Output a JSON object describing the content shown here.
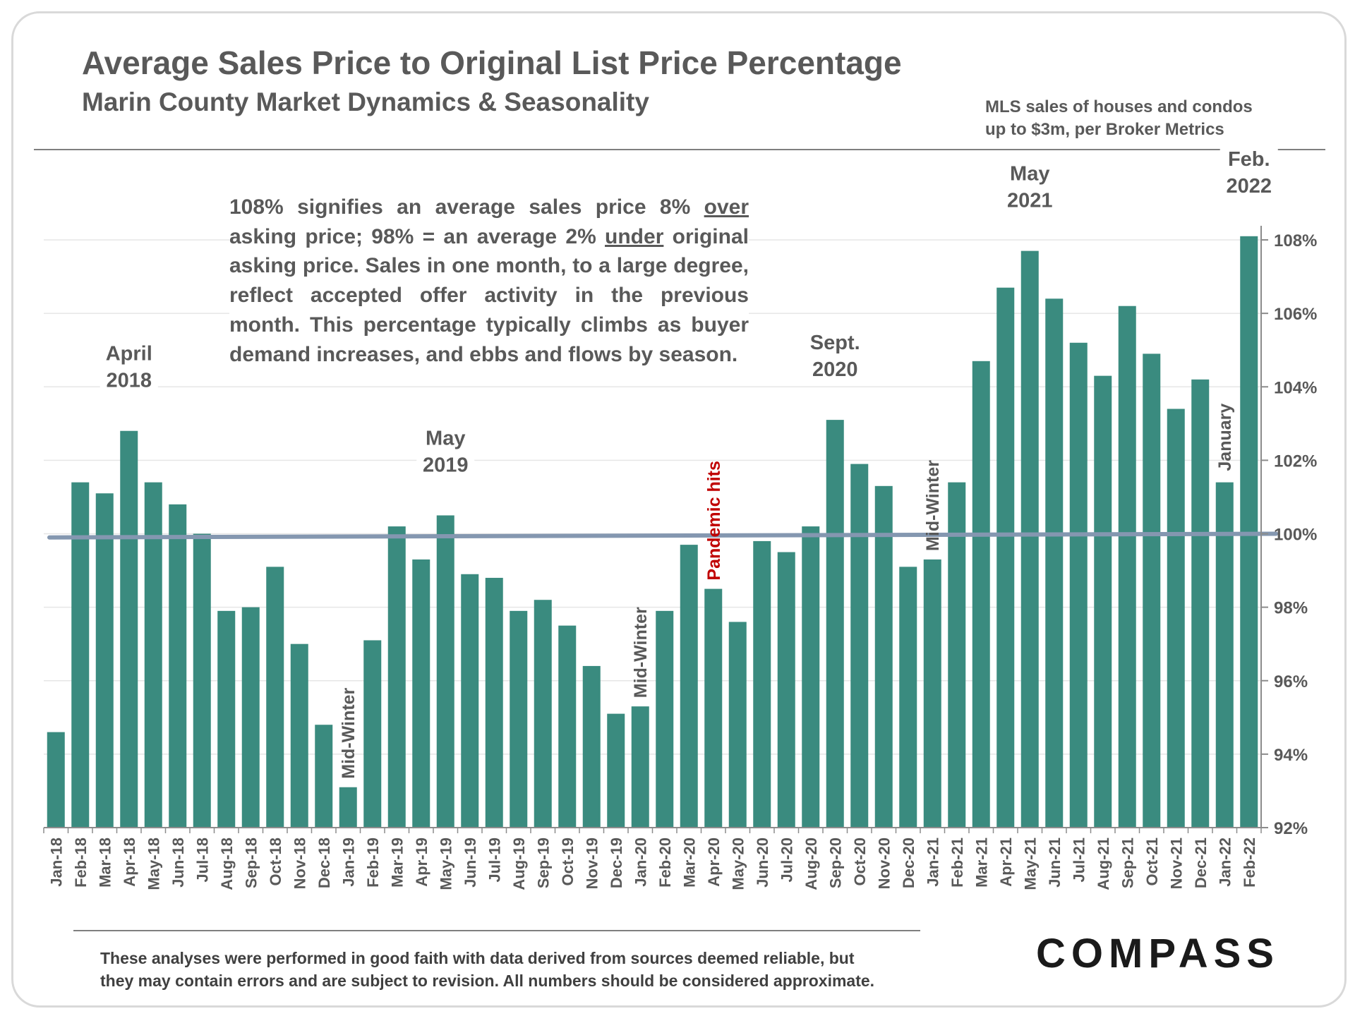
{
  "header": {
    "title": "Average Sales Price to Original List Price Percentage",
    "subtitle": "Marin County Market Dynamics & Seasonality",
    "source_line1": "MLS sales of houses and condos",
    "source_line2": "up to $3m, per Broker Metrics"
  },
  "explanation": {
    "part1": "108% signifies an average sales price 8% ",
    "under1": "over",
    "part2": " asking price; 98% = an average 2% ",
    "under2": "under",
    "part3": " original asking price. Sales in one month, to a large degree, reflect accepted offer activity in the previous month. This percentage typically climbs as buyer demand increases, and ebbs and flows by season."
  },
  "footer": {
    "disclaimer_line1": "These analyses were performed in good faith with data derived from sources deemed reliable, but",
    "disclaimer_line2": "they may contain errors and are subject to revision. All numbers should be considered  approximate.",
    "logo": "COMPASS"
  },
  "colors": {
    "bar": "#3a8b7f",
    "reference_line": "#8497b0",
    "text": "#595959",
    "pandemic": "#c00000",
    "grid": "#e6e6e6"
  },
  "chart_data": {
    "type": "bar",
    "title": "Average Sales Price to Original List Price Percentage",
    "xlabel": "",
    "ylabel": "",
    "ylim": [
      92,
      108
    ],
    "yticks": [
      "92%",
      "94%",
      "96%",
      "98%",
      "100%",
      "102%",
      "104%",
      "106%",
      "108%"
    ],
    "grid": true,
    "reference_line": 100,
    "categories": [
      "Jan-18",
      "Feb-18",
      "Mar-18",
      "Apr-18",
      "May-18",
      "Jun-18",
      "Jul-18",
      "Aug-18",
      "Sep-18",
      "Oct-18",
      "Nov-18",
      "Dec-18",
      "Jan-19",
      "Feb-19",
      "Mar-19",
      "Apr-19",
      "May-19",
      "Jun-19",
      "Jul-19",
      "Aug-19",
      "Sep-19",
      "Oct-19",
      "Nov-19",
      "Dec-19",
      "Jan-20",
      "Feb-20",
      "Mar-20",
      "Apr-20",
      "May-20",
      "Jun-20",
      "Jul-20",
      "Aug-20",
      "Sep-20",
      "Oct-20",
      "Nov-20",
      "Dec-20",
      "Jan-21",
      "Feb-21",
      "Mar-21",
      "Apr-21",
      "May-21",
      "Jun-21",
      "Jul-21",
      "Aug-21",
      "Sep-21",
      "Oct-21",
      "Nov-21",
      "Dec-21",
      "Jan-22",
      "Feb-22"
    ],
    "values": [
      94.6,
      101.4,
      101.1,
      102.8,
      101.4,
      100.8,
      100.0,
      97.9,
      98.0,
      99.1,
      97.0,
      94.8,
      93.1,
      97.1,
      100.2,
      99.3,
      100.5,
      98.9,
      98.8,
      97.9,
      98.2,
      97.5,
      96.4,
      95.1,
      95.3,
      97.9,
      99.7,
      98.5,
      97.6,
      99.8,
      99.5,
      100.2,
      103.1,
      101.9,
      101.3,
      99.1,
      99.3,
      101.4,
      104.7,
      106.7,
      107.7,
      106.4,
      105.2,
      104.3,
      106.2,
      104.9,
      103.4,
      104.2,
      101.4,
      108.1
    ],
    "annotations": [
      {
        "index": 3,
        "lines": [
          "April",
          "2018"
        ]
      },
      {
        "index": 16,
        "lines": [
          "May",
          "2019"
        ]
      },
      {
        "index": 32,
        "lines": [
          "Sept.",
          "2020"
        ]
      },
      {
        "index": 40,
        "lines": [
          "May",
          "2021"
        ]
      },
      {
        "index": 49,
        "lines": [
          "Feb.",
          "2022"
        ]
      }
    ],
    "vertical_annotations": [
      {
        "index": 12,
        "text": "Mid-Winter",
        "color": "#595959"
      },
      {
        "index": 24,
        "text": "Mid-Winter",
        "color": "#595959"
      },
      {
        "index": 27,
        "text": "Pandemic hits",
        "color": "#c00000"
      },
      {
        "index": 36,
        "text": "Mid-Winter",
        "color": "#595959"
      },
      {
        "index": 48,
        "text": "January",
        "color": "#595959"
      }
    ]
  }
}
